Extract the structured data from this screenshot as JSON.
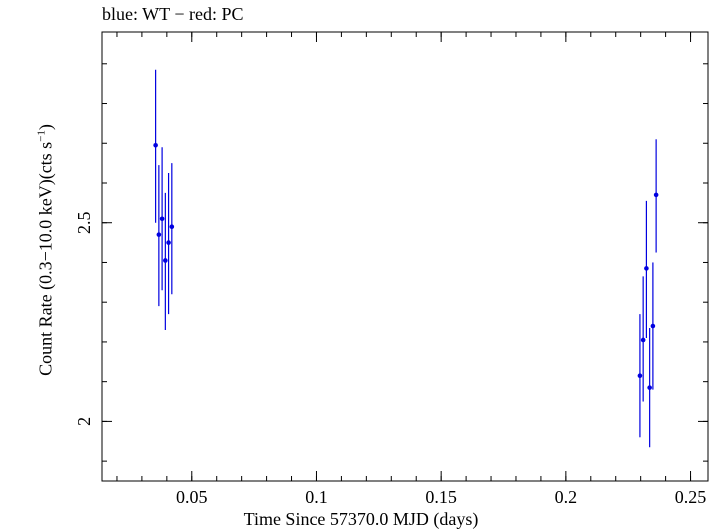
{
  "chart_data": {
    "type": "scatter",
    "title": "blue: WT − red: PC",
    "xlabel": "Time Since 57370.0 MJD (days)",
    "ylabel_main": "Count Rate (0.3−10.0 keV)(cts s",
    "ylabel_sup": "−1",
    "ylabel_end": ")",
    "xlim": [
      0.014,
      0.257
    ],
    "ylim": [
      1.85,
      2.98
    ],
    "xticks": [
      {
        "value": 0.05,
        "label": "0.05"
      },
      {
        "value": 0.1,
        "label": "0.1"
      },
      {
        "value": 0.15,
        "label": "0.15"
      },
      {
        "value": 0.2,
        "label": "0.2"
      },
      {
        "value": 0.25,
        "label": "0.25"
      }
    ],
    "xminor_step": 0.01,
    "yticks": [
      {
        "value": 2.0,
        "label": "2"
      },
      {
        "value": 2.5,
        "label": "2.5"
      }
    ],
    "yminor_step": 0.1,
    "series": [
      {
        "name": "WT",
        "color": "#0000e0",
        "points": [
          {
            "x": 0.0355,
            "y": 2.695,
            "ylo": 2.5,
            "yhi": 2.885
          },
          {
            "x": 0.0368,
            "y": 2.47,
            "ylo": 2.29,
            "yhi": 2.645
          },
          {
            "x": 0.0381,
            "y": 2.51,
            "ylo": 2.33,
            "yhi": 2.69
          },
          {
            "x": 0.0394,
            "y": 2.405,
            "ylo": 2.23,
            "yhi": 2.575
          },
          {
            "x": 0.0407,
            "y": 2.45,
            "ylo": 2.27,
            "yhi": 2.625
          },
          {
            "x": 0.042,
            "y": 2.49,
            "ylo": 2.32,
            "yhi": 2.65
          },
          {
            "x": 0.2297,
            "y": 2.115,
            "ylo": 1.96,
            "yhi": 2.27
          },
          {
            "x": 0.231,
            "y": 2.205,
            "ylo": 2.05,
            "yhi": 2.365
          },
          {
            "x": 0.2323,
            "y": 2.385,
            "ylo": 2.21,
            "yhi": 2.555
          },
          {
            "x": 0.2336,
            "y": 2.085,
            "ylo": 1.935,
            "yhi": 2.235
          },
          {
            "x": 0.2349,
            "y": 2.24,
            "ylo": 2.08,
            "yhi": 2.4
          },
          {
            "x": 0.2362,
            "y": 2.57,
            "ylo": 2.425,
            "yhi": 2.71
          }
        ]
      }
    ]
  }
}
